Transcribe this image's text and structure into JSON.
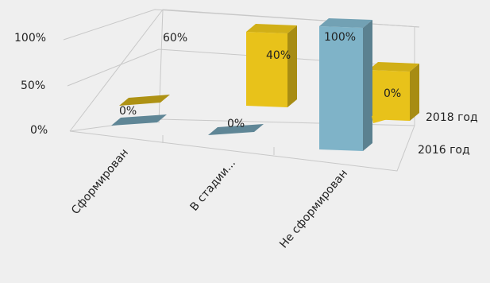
{
  "chart_data": {
    "type": "bar",
    "categories": [
      "Сформирован",
      "В стадии...",
      "Не сформирован"
    ],
    "series": [
      {
        "name": "2016 год",
        "values": [
          0,
          0,
          100
        ],
        "labels": [
          "0%",
          "0%",
          "100%"
        ]
      },
      {
        "name": "2018 год",
        "values": [
          0,
          60,
          40
        ],
        "labels": [
          "0%",
          "60%",
          "40%"
        ]
      }
    ],
    "extra_labels": [
      "0%"
    ],
    "y_ticks": [
      "0%",
      "50%",
      "100%"
    ],
    "ylim": [
      0,
      100
    ],
    "grid": true,
    "colors": {
      "s2016": "#7fb3c8",
      "s2018": "#e8c21a"
    }
  }
}
